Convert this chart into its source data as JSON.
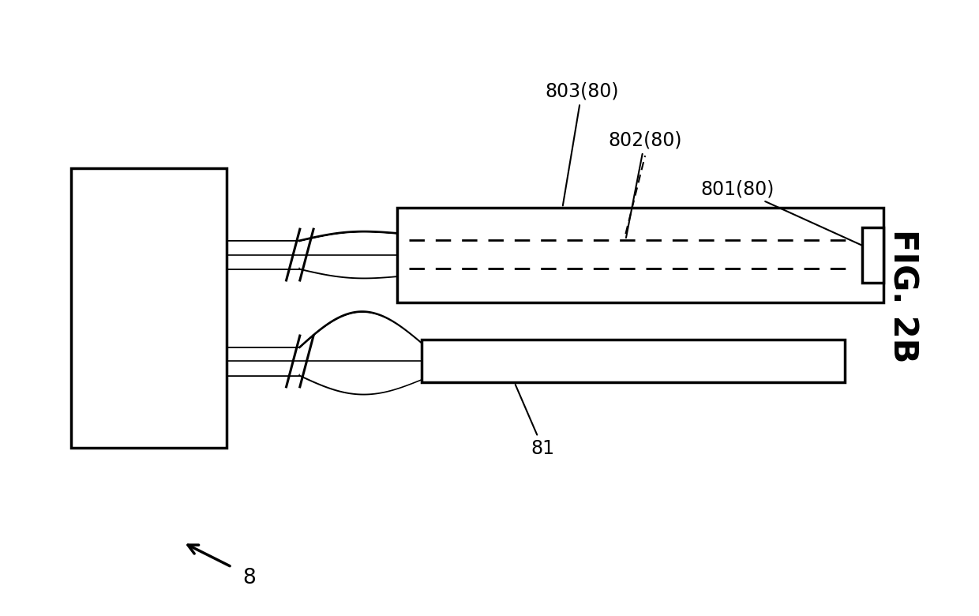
{
  "bg_color": "#ffffff",
  "line_color": "#000000",
  "fig_label": "FIG. 2B",
  "component_8_label": "8",
  "component_81_label": "81",
  "component_801_label": "801(80)",
  "component_802_label": "802(80)",
  "component_803_label": "803(80)"
}
